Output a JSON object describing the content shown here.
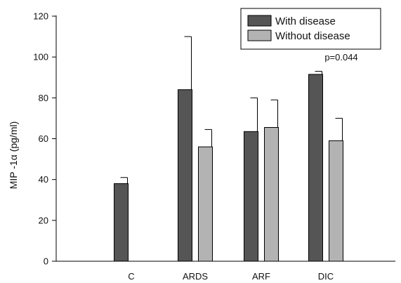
{
  "chart_data": {
    "type": "bar",
    "title": "",
    "xlabel": "",
    "ylabel": "MIP -1α (pg/ml)",
    "ylim": [
      0,
      120
    ],
    "yticks": [
      0,
      20,
      40,
      60,
      80,
      100,
      120
    ],
    "grid": false,
    "legend_position": "top-right",
    "categories": [
      "C",
      "ARDS",
      "ARF",
      "DIC"
    ],
    "series": [
      {
        "name": "With disease",
        "color": "#555555",
        "values": [
          38,
          84,
          63.5,
          91.5
        ],
        "errors": [
          3,
          26,
          16.5,
          1.5
        ]
      },
      {
        "name": "Without disease",
        "color": "#b3b3b3",
        "values": [
          null,
          56,
          65.5,
          59
        ],
        "errors": [
          null,
          8.5,
          13.5,
          11
        ]
      }
    ],
    "annotations": [
      {
        "text": "p=0.044",
        "category": "DIC"
      }
    ]
  }
}
